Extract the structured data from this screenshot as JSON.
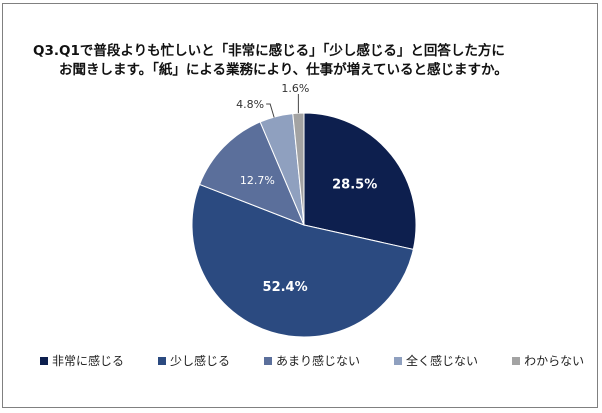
{
  "chart_data": {
    "type": "pie",
    "title": [
      "Q3.Q1で普段よりも忙しいと「非常に感じる」「少し感じる」と回答した方に",
      "お聞きします。「紙」による業務により、仕事が増えていると感じますか。"
    ],
    "categories": [
      "非常に感じる",
      "少し感じる",
      "あまり感じない",
      "全く感じない",
      "わからない"
    ],
    "values": [
      28.5,
      52.4,
      12.7,
      4.8,
      1.6
    ],
    "labels": [
      "28.5%",
      "52.4%",
      "12.7%",
      "4.8%",
      "1.6%"
    ],
    "colors": [
      "#0d1f4e",
      "#2b4a80",
      "#5b6f9b",
      "#8fa0bf",
      "#a3a3a3"
    ],
    "legend_position": "bottom"
  }
}
